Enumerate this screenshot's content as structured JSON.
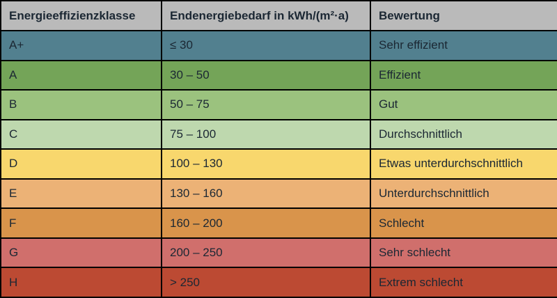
{
  "styles": {
    "header_bg": "#bababa",
    "text_color": "#1b2733",
    "border_color": "#000000"
  },
  "chart_data": {
    "type": "table",
    "columns": [
      "Energieeffizienzklasse",
      "Endenergiebedarf in kWh/(m²·a)",
      "Bewertung"
    ],
    "rows": [
      {
        "klasse": "A+",
        "bedarf": "≤ 30",
        "bewertung": "Sehr effizient",
        "color": "#52808f"
      },
      {
        "klasse": "A",
        "bedarf": "30 – 50",
        "bewertung": "Effizient",
        "color": "#74a458"
      },
      {
        "klasse": "B",
        "bedarf": "50 – 75",
        "bewertung": "Gut",
        "color": "#9bc27e"
      },
      {
        "klasse": "C",
        "bedarf": "75 – 100",
        "bewertung": "Durchschnittlich",
        "color": "#bed8ae"
      },
      {
        "klasse": "D",
        "bedarf": "100 – 130",
        "bewertung": "Etwas unterdurchschnittlich",
        "color": "#f8d76d"
      },
      {
        "klasse": "E",
        "bedarf": "130 – 160",
        "bewertung": "Unterdurchschnittlich",
        "color": "#ecb276"
      },
      {
        "klasse": "F",
        "bedarf": "160 – 200",
        "bewertung": "Schlecht",
        "color": "#d9944b"
      },
      {
        "klasse": "G",
        "bedarf": "200 – 250",
        "bewertung": "Sehr schlecht",
        "color": "#d06f6c"
      },
      {
        "klasse": "H",
        "bedarf": "> 250",
        "bewertung": "Extrem schlecht",
        "color": "#bc4a33"
      }
    ]
  }
}
